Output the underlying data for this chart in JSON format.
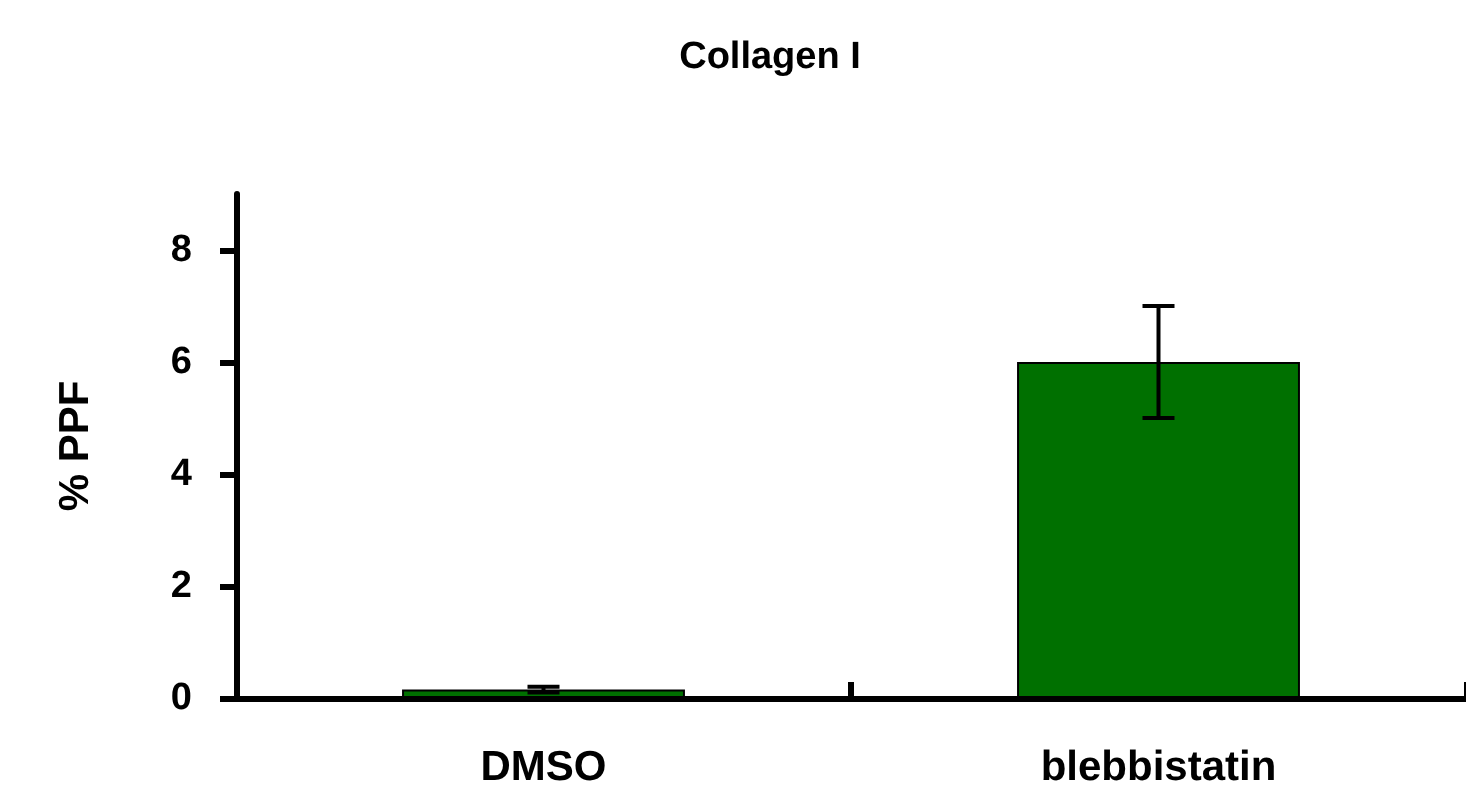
{
  "chart_data": {
    "type": "bar",
    "title": "Collagen I",
    "ylabel": "% PPF",
    "categories": [
      "DMSO",
      "blebbistatin"
    ],
    "values": [
      0.15,
      6
    ],
    "errors": [
      0.05,
      1
    ],
    "color": "#007000",
    "ylim": [
      0,
      9
    ],
    "yticks": [
      0,
      2,
      4,
      6,
      8
    ],
    "grid": false
  }
}
